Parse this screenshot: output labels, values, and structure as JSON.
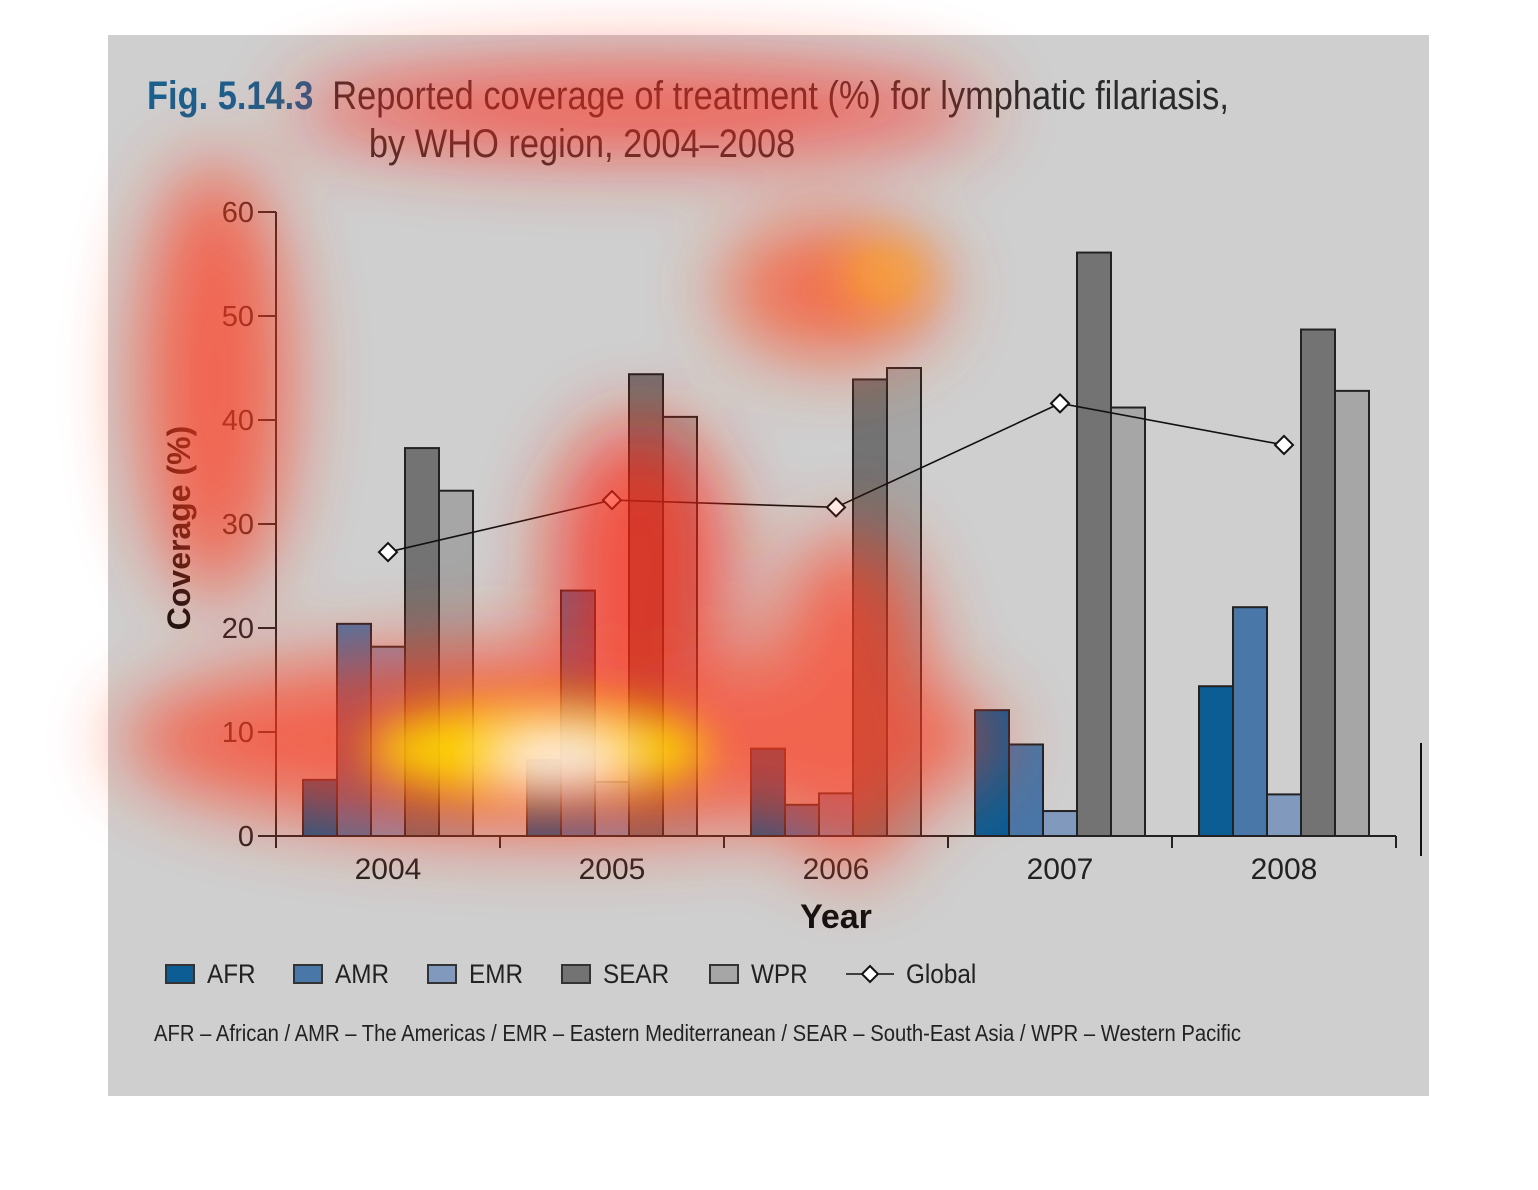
{
  "figure": {
    "number": "Fig. 5.14.3",
    "title_line1": "Reported coverage of treatment (%) for lymphatic filariasis,",
    "title_line2": "by WHO region, 2004–2008"
  },
  "legend_items": [
    {
      "label": "AFR",
      "color": "#0b5d94"
    },
    {
      "label": "AMR",
      "color": "#4877a8"
    },
    {
      "label": "EMR",
      "color": "#8099bc"
    },
    {
      "label": "SEAR",
      "color": "#737373"
    },
    {
      "label": "WPR",
      "color": "#a6a6a6"
    },
    {
      "label": "Global",
      "marker": "diamond-line"
    }
  ],
  "footnote": "AFR – African / AMR – The Americas / EMR – Eastern Mediterranean / SEAR – South-East Asia / WPR – Western Pacific",
  "chart_data": {
    "type": "bar",
    "xlabel": "Year",
    "ylabel": "Coverage (%)",
    "ylim": [
      0,
      60
    ],
    "yticks": [
      0,
      10,
      20,
      30,
      40,
      50,
      60
    ],
    "categories": [
      "2004",
      "2005",
      "2006",
      "2007",
      "2008"
    ],
    "series": [
      {
        "name": "AFR",
        "color": "#0b5d94",
        "values": [
          5.4,
          7.3,
          8.4,
          12.1,
          14.4
        ]
      },
      {
        "name": "AMR",
        "color": "#4877a8",
        "values": [
          20.4,
          23.6,
          3.0,
          8.8,
          22.0
        ]
      },
      {
        "name": "EMR",
        "color": "#8099bc",
        "values": [
          18.2,
          5.2,
          4.1,
          2.4,
          4.0
        ]
      },
      {
        "name": "SEAR",
        "color": "#737373",
        "values": [
          37.3,
          44.4,
          43.9,
          56.1,
          48.7
        ]
      },
      {
        "name": "WPR",
        "color": "#a6a6a6",
        "values": [
          33.2,
          40.3,
          45.0,
          41.2,
          42.8
        ]
      }
    ],
    "line_series": {
      "name": "Global",
      "type": "line",
      "marker": "diamond",
      "values": [
        27.3,
        32.3,
        31.6,
        41.6,
        37.6
      ]
    },
    "grid": false,
    "legend_position": "bottom",
    "overlay": "attention heatmap"
  }
}
